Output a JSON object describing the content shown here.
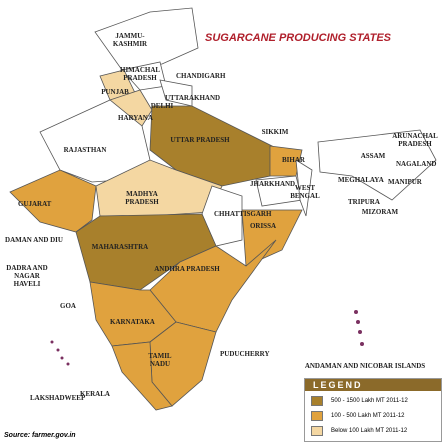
{
  "title": "SUGARCANE PRODUCING STATES",
  "labels": [
    "JAMMU-KASHMIR",
    "HIMACHAL PRADESH",
    "CHANDIGARH",
    "PUNJAB",
    "UTTARAKHAND",
    "HARYANA",
    "DELHI",
    "RAJASTHAN",
    "UTTAR PRADESH",
    "SIKKIM",
    "ARUNACHAL PRADESH",
    "ASSAM",
    "NAGALAND",
    "BIHAR",
    "MEGHALAYA",
    "MANIPUR",
    "JHARKHAND",
    "WEST BENGAL",
    "TRIPURA",
    "MIZORAM",
    "MADHYA PRADESH",
    "GUJARAT",
    "CHHATTISGARH",
    "ORISSA",
    "DAMAN AND DIU",
    "MAHARASHTRA",
    "DADRA AND NAGAR HAVELI",
    "ANDHRA PRADESH",
    "GOA",
    "KARNATAKA",
    "PUDUCHERRY",
    "ANDAMAN AND NICOBAR ISLANDS",
    "TAMIL NADU",
    "LAKSHADWEEP",
    "KERALA"
  ],
  "legend": {
    "title": "LEGEND",
    "items": [
      {
        "label": "500 - 1500 Lakh MT 2011-12",
        "color": "#a8802c"
      },
      {
        "label": "100 - 500 Lakh MT 2011-12",
        "color": "#e0a23e"
      },
      {
        "label": "Below 100 Lakh MT 2011-12",
        "color": "#f4d7a2"
      }
    ]
  },
  "source": "Source: farmer.gov.in"
}
